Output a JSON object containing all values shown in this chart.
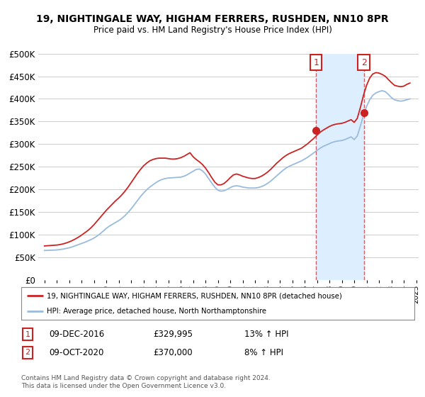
{
  "title_line1": "19, NIGHTINGALE WAY, HIGHAM FERRERS, RUSHDEN, NN10 8PR",
  "title_line2": "Price paid vs. HM Land Registry's House Price Index (HPI)",
  "ytick_values": [
    0,
    50000,
    100000,
    150000,
    200000,
    250000,
    300000,
    350000,
    400000,
    450000,
    500000
  ],
  "xlim_start": 1994.5,
  "xlim_end": 2025.2,
  "ylim_min": 0,
  "ylim_max": 500000,
  "hpi_color": "#99bbdd",
  "price_color": "#cc2222",
  "shade_color": "#ddeeff",
  "marker1_year": 2016.92,
  "marker1_price": 329995,
  "marker1_label": "1",
  "marker2_year": 2020.78,
  "marker2_price": 370000,
  "marker2_label": "2",
  "legend_price_label": "19, NIGHTINGALE WAY, HIGHAM FERRERS, RUSHDEN, NN10 8PR (detached house)",
  "legend_hpi_label": "HPI: Average price, detached house, North Northamptonshire",
  "table_rows": [
    {
      "num": "1",
      "date": "09-DEC-2016",
      "price": "£329,995",
      "change": "13% ↑ HPI"
    },
    {
      "num": "2",
      "date": "09-OCT-2020",
      "price": "£370,000",
      "change": "8% ↑ HPI"
    }
  ],
  "footnote": "Contains HM Land Registry data © Crown copyright and database right 2024.\nThis data is licensed under the Open Government Licence v3.0.",
  "bg_color": "#ffffff",
  "grid_color": "#cccccc",
  "hpi_data_x": [
    1995,
    1995.25,
    1995.5,
    1995.75,
    1996,
    1996.25,
    1996.5,
    1996.75,
    1997,
    1997.25,
    1997.5,
    1997.75,
    1998,
    1998.25,
    1998.5,
    1998.75,
    1999,
    1999.25,
    1999.5,
    1999.75,
    2000,
    2000.25,
    2000.5,
    2000.75,
    2001,
    2001.25,
    2001.5,
    2001.75,
    2002,
    2002.25,
    2002.5,
    2002.75,
    2003,
    2003.25,
    2003.5,
    2003.75,
    2004,
    2004.25,
    2004.5,
    2004.75,
    2005,
    2005.25,
    2005.5,
    2005.75,
    2006,
    2006.25,
    2006.5,
    2006.75,
    2007,
    2007.25,
    2007.5,
    2007.75,
    2008,
    2008.25,
    2008.5,
    2008.75,
    2009,
    2009.25,
    2009.5,
    2009.75,
    2010,
    2010.25,
    2010.5,
    2010.75,
    2011,
    2011.25,
    2011.5,
    2011.75,
    2012,
    2012.25,
    2012.5,
    2012.75,
    2013,
    2013.25,
    2013.5,
    2013.75,
    2014,
    2014.25,
    2014.5,
    2014.75,
    2015,
    2015.25,
    2015.5,
    2015.75,
    2016,
    2016.25,
    2016.5,
    2016.75,
    2017,
    2017.25,
    2017.5,
    2017.75,
    2018,
    2018.25,
    2018.5,
    2018.75,
    2019,
    2019.25,
    2019.5,
    2019.75,
    2020,
    2020.25,
    2020.5,
    2020.75,
    2021,
    2021.25,
    2021.5,
    2021.75,
    2022,
    2022.25,
    2022.5,
    2022.75,
    2023,
    2023.25,
    2023.5,
    2023.75,
    2024,
    2024.25,
    2024.5
  ],
  "hpi_data_y": [
    65000,
    65200,
    65500,
    65800,
    66200,
    67000,
    68000,
    69500,
    71000,
    73000,
    75500,
    78000,
    80500,
    83000,
    86000,
    89000,
    92500,
    97000,
    102000,
    108000,
    114000,
    119000,
    123000,
    127000,
    131000,
    136000,
    142000,
    149000,
    157000,
    166000,
    175000,
    184000,
    192000,
    199000,
    205000,
    210000,
    215000,
    219000,
    222000,
    224000,
    225000,
    225500,
    226000,
    226500,
    227000,
    229000,
    232000,
    236000,
    240000,
    244000,
    245000,
    241000,
    234000,
    224000,
    214000,
    205000,
    198000,
    196000,
    197000,
    200000,
    204000,
    207000,
    208000,
    207000,
    205000,
    204000,
    203000,
    203000,
    203000,
    204000,
    206000,
    209000,
    213000,
    218000,
    224000,
    230000,
    236000,
    242000,
    247000,
    251000,
    254000,
    257000,
    260000,
    263000,
    267000,
    271000,
    276000,
    281000,
    286000,
    291000,
    295000,
    298000,
    301000,
    304000,
    306000,
    307000,
    308000,
    310000,
    313000,
    316000,
    310000,
    318000,
    340000,
    364000,
    383000,
    398000,
    408000,
    413000,
    416000,
    418000,
    416000,
    410000,
    403000,
    398000,
    396000,
    395000,
    396000,
    398000,
    400000
  ],
  "price_data_x": [
    1995,
    1995.25,
    1995.5,
    1995.75,
    1996,
    1996.25,
    1996.5,
    1996.75,
    1997,
    1997.25,
    1997.5,
    1997.75,
    1998,
    1998.25,
    1998.5,
    1998.75,
    1999,
    1999.25,
    1999.5,
    1999.75,
    2000,
    2000.25,
    2000.5,
    2000.75,
    2001,
    2001.25,
    2001.5,
    2001.75,
    2002,
    2002.25,
    2002.5,
    2002.75,
    2003,
    2003.25,
    2003.5,
    2003.75,
    2004,
    2004.25,
    2004.5,
    2004.75,
    2005,
    2005.25,
    2005.5,
    2005.75,
    2006,
    2006.25,
    2006.5,
    2006.75,
    2007,
    2007.25,
    2007.5,
    2007.75,
    2008,
    2008.25,
    2008.5,
    2008.75,
    2009,
    2009.25,
    2009.5,
    2009.75,
    2010,
    2010.25,
    2010.5,
    2010.75,
    2011,
    2011.25,
    2011.5,
    2011.75,
    2012,
    2012.25,
    2012.5,
    2012.75,
    2013,
    2013.25,
    2013.5,
    2013.75,
    2014,
    2014.25,
    2014.5,
    2014.75,
    2015,
    2015.25,
    2015.5,
    2015.75,
    2016,
    2016.25,
    2016.5,
    2016.75,
    2017,
    2017.25,
    2017.5,
    2017.75,
    2018,
    2018.25,
    2018.5,
    2018.75,
    2019,
    2019.25,
    2019.5,
    2019.75,
    2020,
    2020.25,
    2020.5,
    2020.75,
    2021,
    2021.25,
    2021.5,
    2021.75,
    2022,
    2022.25,
    2022.5,
    2022.75,
    2023,
    2023.25,
    2023.5,
    2023.75,
    2024,
    2024.25,
    2024.5
  ],
  "price_data_y": [
    75000,
    75500,
    76000,
    76500,
    77000,
    78000,
    79500,
    81500,
    84000,
    87000,
    90500,
    94500,
    99000,
    104000,
    109000,
    115000,
    122000,
    130000,
    138000,
    146000,
    154000,
    161000,
    168000,
    175000,
    181000,
    188000,
    196000,
    205000,
    215000,
    225000,
    235000,
    244000,
    252000,
    258000,
    263000,
    266000,
    268000,
    269000,
    269000,
    269000,
    268000,
    267000,
    267000,
    268000,
    270000,
    273000,
    277000,
    281000,
    272000,
    266000,
    261000,
    255000,
    247000,
    237000,
    226000,
    216000,
    210000,
    210000,
    213000,
    219000,
    226000,
    232000,
    234000,
    232000,
    229000,
    227000,
    225000,
    224000,
    224000,
    226000,
    229000,
    233000,
    238000,
    244000,
    251000,
    258000,
    264000,
    270000,
    275000,
    279000,
    282000,
    285000,
    288000,
    291000,
    296000,
    301000,
    307000,
    313000,
    320000,
    326000,
    331000,
    335000,
    339000,
    342000,
    344000,
    345000,
    346000,
    348000,
    351000,
    354000,
    348000,
    357000,
    381000,
    408000,
    430000,
    446000,
    455000,
    458000,
    457000,
    454000,
    450000,
    443000,
    436000,
    430000,
    428000,
    427000,
    428000,
    432000,
    435000
  ]
}
